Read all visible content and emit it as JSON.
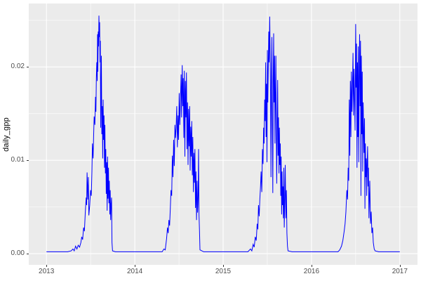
{
  "chart_data": {
    "type": "line",
    "title": "",
    "xlabel": "",
    "ylabel": "daily_gpp",
    "legend": "none",
    "grid": "on",
    "panel_bg": "#EBEBEB",
    "grid_color": "#FFFFFF",
    "line_color": "#0000FF",
    "tick_text_color": "#4D4D4D",
    "x_range": [
      2012.8,
      2017.2
    ],
    "y_range": [
      -0.0012,
      0.0268
    ],
    "x_ticks": [
      2013,
      2014,
      2015,
      2016,
      2017
    ],
    "x_tick_labels": [
      "2013",
      "2014",
      "2015",
      "2016",
      "2017"
    ],
    "x_minor_ticks": [
      2013.5,
      2014.5,
      2015.5,
      2016.5
    ],
    "y_ticks": [
      0.0,
      0.01,
      0.02
    ],
    "y_tick_labels": [
      "0.00",
      "0.01",
      "0.02"
    ],
    "y_minor_ticks": [
      0.005,
      0.015,
      0.025
    ],
    "series_name": "daily_gpp",
    "points": [
      [
        2013.0,
        0.0002
      ],
      [
        2013.06,
        0.0002
      ],
      [
        2013.12,
        0.0002
      ],
      [
        2013.18,
        0.0002
      ],
      [
        2013.24,
        0.0002
      ],
      [
        2013.28,
        0.0003
      ],
      [
        2013.3,
        0.0005
      ],
      [
        2013.315,
        0.0003
      ],
      [
        2013.33,
        0.0008
      ],
      [
        2013.345,
        0.0005
      ],
      [
        2013.36,
        0.0009
      ],
      [
        2013.375,
        0.0007
      ],
      [
        2013.39,
        0.0012
      ],
      [
        2013.4,
        0.0018
      ],
      [
        2013.41,
        0.0015
      ],
      [
        2013.42,
        0.0028
      ],
      [
        2013.43,
        0.0024
      ],
      [
        2013.44,
        0.0045
      ],
      [
        2013.45,
        0.006
      ],
      [
        2013.455,
        0.0052
      ],
      [
        2013.46,
        0.0087
      ],
      [
        2013.468,
        0.0058
      ],
      [
        2013.474,
        0.0082
      ],
      [
        2013.48,
        0.0041
      ],
      [
        2013.49,
        0.0052
      ],
      [
        2013.5,
        0.0068
      ],
      [
        2013.508,
        0.0062
      ],
      [
        2013.515,
        0.0088
      ],
      [
        2013.52,
        0.0118
      ],
      [
        2013.528,
        0.0102
      ],
      [
        2013.535,
        0.0128
      ],
      [
        2013.54,
        0.0147
      ],
      [
        2013.548,
        0.0138
      ],
      [
        2013.555,
        0.0168
      ],
      [
        2013.56,
        0.0152
      ],
      [
        2013.565,
        0.0188
      ],
      [
        2013.57,
        0.0205
      ],
      [
        2013.575,
        0.0185
      ],
      [
        2013.578,
        0.0235
      ],
      [
        2013.582,
        0.0195
      ],
      [
        2013.586,
        0.0238
      ],
      [
        2013.59,
        0.0222
      ],
      [
        2013.594,
        0.0255
      ],
      [
        2013.598,
        0.0232
      ],
      [
        2013.602,
        0.0248
      ],
      [
        2013.606,
        0.0205
      ],
      [
        2013.61,
        0.0228
      ],
      [
        2013.614,
        0.0135
      ],
      [
        2013.618,
        0.0172
      ],
      [
        2013.622,
        0.0212
      ],
      [
        2013.627,
        0.0128
      ],
      [
        2013.632,
        0.0158
      ],
      [
        2013.637,
        0.0102
      ],
      [
        2013.642,
        0.0165
      ],
      [
        2013.647,
        0.0122
      ],
      [
        2013.652,
        0.0148
      ],
      [
        2013.657,
        0.0092
      ],
      [
        2013.662,
        0.0138
      ],
      [
        2013.667,
        0.0086
      ],
      [
        2013.672,
        0.0112
      ],
      [
        2013.677,
        0.0064
      ],
      [
        2013.682,
        0.0098
      ],
      [
        2013.687,
        0.0046
      ],
      [
        2013.692,
        0.0104
      ],
      [
        2013.697,
        0.0059
      ],
      [
        2013.702,
        0.0092
      ],
      [
        2013.707,
        0.0054
      ],
      [
        2013.712,
        0.0078
      ],
      [
        2013.717,
        0.0042
      ],
      [
        2013.722,
        0.0068
      ],
      [
        2013.727,
        0.0036
      ],
      [
        2013.732,
        0.0052
      ],
      [
        2013.737,
        0.006
      ],
      [
        2013.742,
        0.0012
      ],
      [
        2013.748,
        0.0003
      ],
      [
        2013.78,
        0.0002
      ],
      [
        2013.86,
        0.0002
      ],
      [
        2013.95,
        0.0002
      ],
      [
        2014.05,
        0.0002
      ],
      [
        2014.15,
        0.0002
      ],
      [
        2014.25,
        0.0002
      ],
      [
        2014.31,
        0.0002
      ],
      [
        2014.33,
        0.0005
      ],
      [
        2014.345,
        0.0004
      ],
      [
        2014.36,
        0.0016
      ],
      [
        2014.37,
        0.0028
      ],
      [
        2014.378,
        0.0022
      ],
      [
        2014.386,
        0.0036
      ],
      [
        2014.394,
        0.003
      ],
      [
        2014.402,
        0.0048
      ],
      [
        2014.41,
        0.0068
      ],
      [
        2014.418,
        0.0062
      ],
      [
        2014.425,
        0.0105
      ],
      [
        2014.432,
        0.0082
      ],
      [
        2014.44,
        0.0122
      ],
      [
        2014.447,
        0.0094
      ],
      [
        2014.454,
        0.0138
      ],
      [
        2014.461,
        0.0124
      ],
      [
        2014.468,
        0.0135
      ],
      [
        2014.475,
        0.0158
      ],
      [
        2014.482,
        0.0114
      ],
      [
        2014.489,
        0.0148
      ],
      [
        2014.496,
        0.0122
      ],
      [
        2014.503,
        0.0172
      ],
      [
        2014.51,
        0.0138
      ],
      [
        2014.517,
        0.0165
      ],
      [
        2014.524,
        0.0192
      ],
      [
        2014.53,
        0.0146
      ],
      [
        2014.537,
        0.0202
      ],
      [
        2014.543,
        0.0158
      ],
      [
        2014.549,
        0.0188
      ],
      [
        2014.555,
        0.0124
      ],
      [
        2014.561,
        0.0196
      ],
      [
        2014.567,
        0.0104
      ],
      [
        2014.573,
        0.0185
      ],
      [
        2014.579,
        0.0146
      ],
      [
        2014.585,
        0.0194
      ],
      [
        2014.591,
        0.0112
      ],
      [
        2014.597,
        0.0162
      ],
      [
        2014.603,
        0.0095
      ],
      [
        2014.609,
        0.0155
      ],
      [
        2014.615,
        0.0115
      ],
      [
        2014.621,
        0.0158
      ],
      [
        2014.627,
        0.0089
      ],
      [
        2014.633,
        0.0136
      ],
      [
        2014.639,
        0.0104
      ],
      [
        2014.645,
        0.0142
      ],
      [
        2014.651,
        0.0084
      ],
      [
        2014.657,
        0.0125
      ],
      [
        2014.663,
        0.0066
      ],
      [
        2014.669,
        0.0108
      ],
      [
        2014.675,
        0.0076
      ],
      [
        2014.681,
        0.0112
      ],
      [
        2014.687,
        0.0049
      ],
      [
        2014.693,
        0.0088
      ],
      [
        2014.699,
        0.0036
      ],
      [
        2014.705,
        0.0078
      ],
      [
        2014.711,
        0.0044
      ],
      [
        2014.717,
        0.0062
      ],
      [
        2014.722,
        0.0112
      ],
      [
        2014.727,
        0.0042
      ],
      [
        2014.732,
        0.0025
      ],
      [
        2014.738,
        0.0004
      ],
      [
        2014.78,
        0.0002
      ],
      [
        2014.9,
        0.0002
      ],
      [
        2015.0,
        0.0002
      ],
      [
        2015.1,
        0.0002
      ],
      [
        2015.2,
        0.0002
      ],
      [
        2015.28,
        0.0002
      ],
      [
        2015.31,
        0.0005
      ],
      [
        2015.325,
        0.0003
      ],
      [
        2015.34,
        0.001
      ],
      [
        2015.352,
        0.0007
      ],
      [
        2015.364,
        0.0018
      ],
      [
        2015.375,
        0.0014
      ],
      [
        2015.385,
        0.0032
      ],
      [
        2015.393,
        0.0026
      ],
      [
        2015.4,
        0.0052
      ],
      [
        2015.408,
        0.004
      ],
      [
        2015.415,
        0.0058
      ],
      [
        2015.423,
        0.0072
      ],
      [
        2015.43,
        0.0088
      ],
      [
        2015.438,
        0.0066
      ],
      [
        2015.445,
        0.0112
      ],
      [
        2015.452,
        0.0096
      ],
      [
        2015.458,
        0.0135
      ],
      [
        2015.464,
        0.0118
      ],
      [
        2015.47,
        0.0165
      ],
      [
        2015.476,
        0.0142
      ],
      [
        2015.481,
        0.0205
      ],
      [
        2015.486,
        0.0125
      ],
      [
        2015.491,
        0.0182
      ],
      [
        2015.496,
        0.0098
      ],
      [
        2015.501,
        0.0218
      ],
      [
        2015.506,
        0.0162
      ],
      [
        2015.511,
        0.0196
      ],
      [
        2015.516,
        0.0238
      ],
      [
        2015.521,
        0.0205
      ],
      [
        2015.527,
        0.0254
      ],
      [
        2015.532,
        0.0215
      ],
      [
        2015.537,
        0.0168
      ],
      [
        2015.542,
        0.0082
      ],
      [
        2015.547,
        0.0195
      ],
      [
        2015.552,
        0.0232
      ],
      [
        2015.557,
        0.0145
      ],
      [
        2015.562,
        0.0065
      ],
      [
        2015.567,
        0.0185
      ],
      [
        2015.572,
        0.0236
      ],
      [
        2015.577,
        0.0162
      ],
      [
        2015.582,
        0.0212
      ],
      [
        2015.587,
        0.0118
      ],
      [
        2015.592,
        0.0165
      ],
      [
        2015.597,
        0.0212
      ],
      [
        2015.602,
        0.0128
      ],
      [
        2015.607,
        0.0075
      ],
      [
        2015.612,
        0.0148
      ],
      [
        2015.617,
        0.0186
      ],
      [
        2015.622,
        0.0105
      ],
      [
        2015.627,
        0.0146
      ],
      [
        2015.632,
        0.0086
      ],
      [
        2015.637,
        0.0135
      ],
      [
        2015.642,
        0.0095
      ],
      [
        2015.647,
        0.0118
      ],
      [
        2015.652,
        0.0062
      ],
      [
        2015.657,
        0.0104
      ],
      [
        2015.662,
        0.0042
      ],
      [
        2015.667,
        0.0088
      ],
      [
        2015.672,
        0.0052
      ],
      [
        2015.677,
        0.0072
      ],
      [
        2015.682,
        0.0038
      ],
      [
        2015.687,
        0.0092
      ],
      [
        2015.692,
        0.0028
      ],
      [
        2015.697,
        0.0055
      ],
      [
        2015.703,
        0.0095
      ],
      [
        2015.71,
        0.0038
      ],
      [
        2015.716,
        0.0068
      ],
      [
        2015.722,
        0.0022
      ],
      [
        2015.728,
        0.0008
      ],
      [
        2015.735,
        0.0003
      ],
      [
        2015.78,
        0.0002
      ],
      [
        2015.9,
        0.0002
      ],
      [
        2016.0,
        0.0002
      ],
      [
        2016.1,
        0.0002
      ],
      [
        2016.2,
        0.0002
      ],
      [
        2016.3,
        0.0002
      ],
      [
        2016.32,
        0.0004
      ],
      [
        2016.34,
        0.0008
      ],
      [
        2016.355,
        0.0014
      ],
      [
        2016.37,
        0.0024
      ],
      [
        2016.38,
        0.0032
      ],
      [
        2016.39,
        0.0045
      ],
      [
        2016.4,
        0.0068
      ],
      [
        2016.408,
        0.0058
      ],
      [
        2016.415,
        0.0092
      ],
      [
        2016.422,
        0.0078
      ],
      [
        2016.428,
        0.0165
      ],
      [
        2016.434,
        0.0105
      ],
      [
        2016.44,
        0.0185
      ],
      [
        2016.446,
        0.0125
      ],
      [
        2016.452,
        0.0195
      ],
      [
        2016.458,
        0.0152
      ],
      [
        2016.464,
        0.0178
      ],
      [
        2016.47,
        0.0215
      ],
      [
        2016.476,
        0.0148
      ],
      [
        2016.482,
        0.0198
      ],
      [
        2016.488,
        0.0162
      ],
      [
        2016.494,
        0.0132
      ],
      [
        2016.5,
        0.0246
      ],
      [
        2016.505,
        0.0178
      ],
      [
        2016.51,
        0.0225
      ],
      [
        2016.515,
        0.0092
      ],
      [
        2016.52,
        0.0205
      ],
      [
        2016.525,
        0.0125
      ],
      [
        2016.53,
        0.0222
      ],
      [
        2016.535,
        0.0098
      ],
      [
        2016.54,
        0.0188
      ],
      [
        2016.545,
        0.0235
      ],
      [
        2016.55,
        0.0158
      ],
      [
        2016.555,
        0.0228
      ],
      [
        2016.56,
        0.0062
      ],
      [
        2016.565,
        0.0212
      ],
      [
        2016.57,
        0.0128
      ],
      [
        2016.575,
        0.0195
      ],
      [
        2016.58,
        0.0088
      ],
      [
        2016.585,
        0.0162
      ],
      [
        2016.59,
        0.0132
      ],
      [
        2016.595,
        0.0108
      ],
      [
        2016.6,
        0.0145
      ],
      [
        2016.605,
        0.0048
      ],
      [
        2016.61,
        0.0118
      ],
      [
        2016.615,
        0.0082
      ],
      [
        2016.62,
        0.0102
      ],
      [
        2016.625,
        0.0062
      ],
      [
        2016.63,
        0.0096
      ],
      [
        2016.635,
        0.0115
      ],
      [
        2016.64,
        0.0072
      ],
      [
        2016.645,
        0.0092
      ],
      [
        2016.65,
        0.0038
      ],
      [
        2016.655,
        0.0058
      ],
      [
        2016.66,
        0.0078
      ],
      [
        2016.668,
        0.0032
      ],
      [
        2016.676,
        0.0045
      ],
      [
        2016.684,
        0.0022
      ],
      [
        2016.692,
        0.0028
      ],
      [
        2016.7,
        0.0012
      ],
      [
        2016.71,
        0.0005
      ],
      [
        2016.72,
        0.0003
      ],
      [
        2016.76,
        0.0002
      ],
      [
        2016.84,
        0.0002
      ],
      [
        2016.92,
        0.0002
      ],
      [
        2017.0,
        0.0002
      ]
    ]
  }
}
